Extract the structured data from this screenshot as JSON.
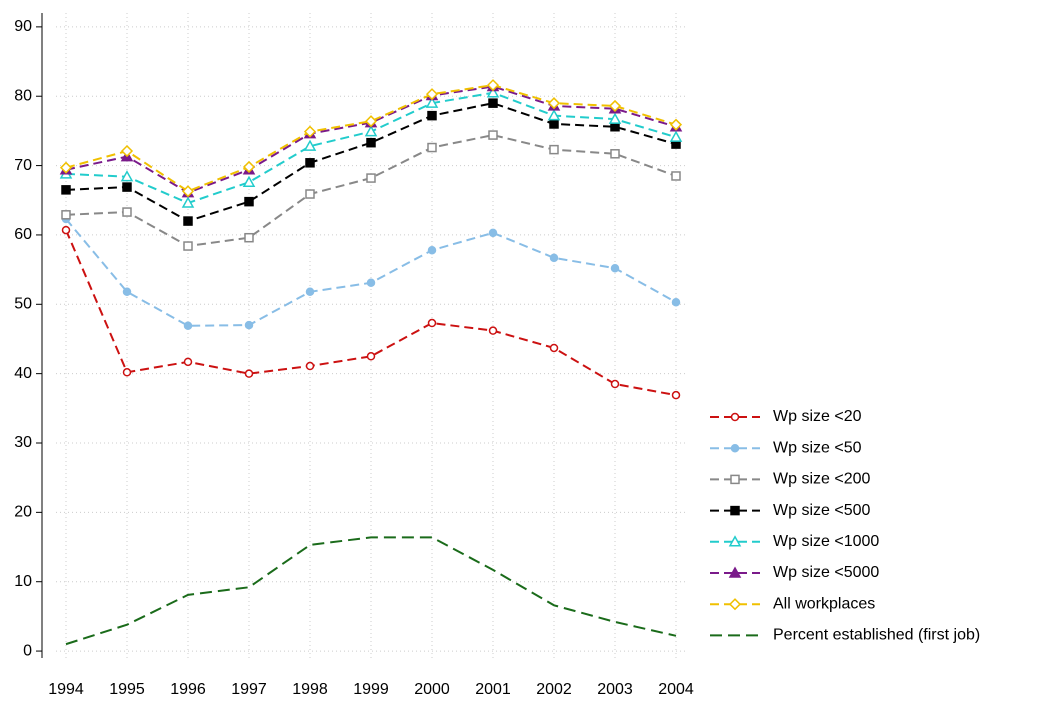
{
  "chart_data": {
    "type": "line",
    "x": [
      1994,
      1995,
      1996,
      1997,
      1998,
      1999,
      2000,
      2001,
      2002,
      2003,
      2004
    ],
    "xlim": [
      1994,
      2004
    ],
    "xticks": [
      1994,
      1995,
      1996,
      1997,
      1998,
      1999,
      2000,
      2001,
      2002,
      2003,
      2004
    ],
    "ylim": [
      -1,
      92
    ],
    "yticks": [
      0,
      10,
      20,
      30,
      40,
      50,
      60,
      70,
      80,
      90
    ],
    "grid": true,
    "legend": "right",
    "series": [
      {
        "name": "Wp size <20",
        "color": "#cc1111",
        "marker": "circle",
        "filled": false,
        "values": [
          60.7,
          40.2,
          41.7,
          40.0,
          41.1,
          42.5,
          47.3,
          46.2,
          43.7,
          38.5,
          36.9
        ]
      },
      {
        "name": "Wp size <50",
        "color": "#88bde6",
        "marker": "circle",
        "filled": true,
        "values": [
          62.3,
          51.8,
          46.9,
          47.0,
          51.8,
          53.1,
          57.8,
          60.3,
          56.7,
          55.2,
          50.3
        ]
      },
      {
        "name": "Wp size <200",
        "color": "#888888",
        "marker": "square",
        "filled": false,
        "values": [
          62.9,
          63.3,
          58.4,
          59.6,
          65.9,
          68.2,
          72.6,
          74.4,
          72.3,
          71.7,
          68.5
        ]
      },
      {
        "name": "Wp size <500",
        "color": "#000000",
        "marker": "square",
        "filled": true,
        "values": [
          66.5,
          66.9,
          62.0,
          64.8,
          70.4,
          73.3,
          77.2,
          79.0,
          76.0,
          75.6,
          73.1
        ]
      },
      {
        "name": "Wp size <1000",
        "color": "#22cccc",
        "marker": "triangle",
        "filled": false,
        "values": [
          68.8,
          68.4,
          64.6,
          67.6,
          72.8,
          74.9,
          79.0,
          80.5,
          77.2,
          76.7,
          74.1
        ]
      },
      {
        "name": "Wp size <5000",
        "color": "#7a1a8a",
        "marker": "triangle",
        "filled": true,
        "values": [
          69.4,
          71.3,
          66.1,
          69.4,
          74.6,
          76.2,
          80.1,
          81.4,
          78.6,
          78.2,
          75.6
        ]
      },
      {
        "name": "All workplaces",
        "color": "#f0c000",
        "marker": "diamond",
        "filled": false,
        "values": [
          69.7,
          72.1,
          66.3,
          69.8,
          74.9,
          76.4,
          80.3,
          81.6,
          79.0,
          78.6,
          75.9
        ]
      },
      {
        "name": "Percent established (first job)",
        "color": "#1a6b1a",
        "marker": "none",
        "filled": false,
        "values": [
          1.0,
          3.8,
          8.1,
          9.2,
          15.3,
          16.4,
          16.4,
          11.7,
          6.6,
          4.2,
          2.2
        ]
      }
    ]
  }
}
